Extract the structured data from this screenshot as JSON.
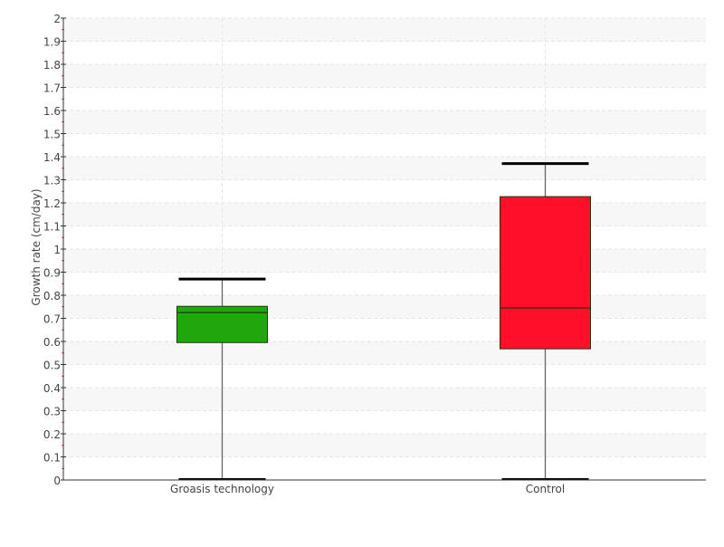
{
  "chart_data": {
    "type": "box",
    "title": "",
    "xlabel": "",
    "ylabel": "Growth rate (cm/day)",
    "ylim": [
      0,
      2
    ],
    "ytick_step": 0.1,
    "yticks": [
      "0",
      "0.1",
      "0.2",
      "0.3",
      "0.4",
      "0.5",
      "0.6",
      "0.7",
      "0.8",
      "0.9",
      "1",
      "1.1",
      "1.2",
      "1.3",
      "1.4",
      "1.5",
      "1.6",
      "1.7",
      "1.8",
      "1.9",
      "2"
    ],
    "grid": true,
    "categories": [
      "Groasis technology",
      "Control"
    ],
    "boxes": [
      {
        "category": "Groasis technology",
        "min": 0,
        "q1": 0.595,
        "median": 0.725,
        "q3": 0.752,
        "max": 0.87,
        "color": "#21a60e"
      },
      {
        "category": "Control",
        "min": 0,
        "q1": 0.568,
        "median": 0.745,
        "q3": 1.227,
        "max": 1.37,
        "color": "#ff0f2a"
      }
    ]
  }
}
